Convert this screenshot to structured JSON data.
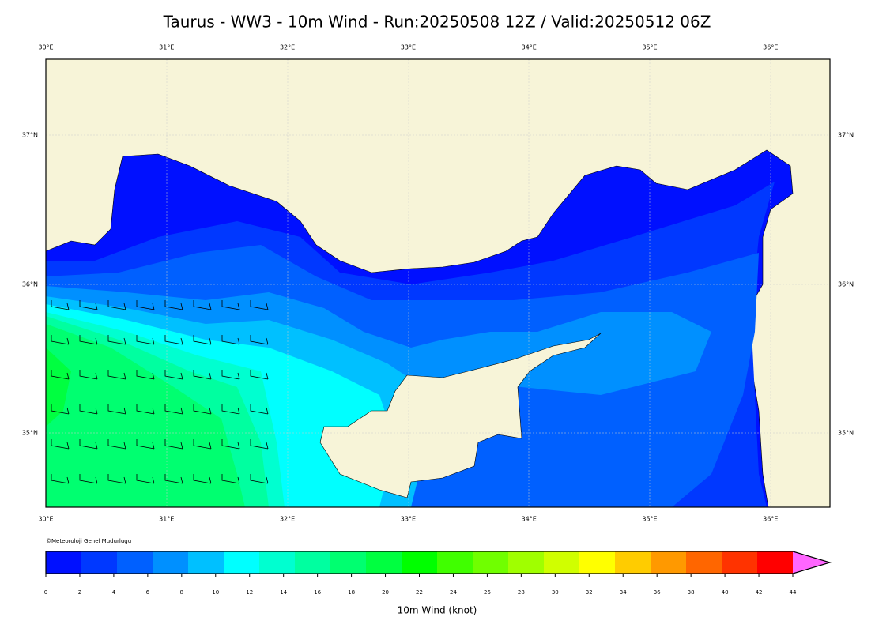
{
  "title": "Taurus - WW3 - 10m Wind - Run:20250508 12Z / Valid:20250512 06Z",
  "map": {
    "lon_labels": [
      "30°E",
      "31°E",
      "32°E",
      "33°E",
      "34°E",
      "35°E",
      "36°E"
    ],
    "lat_labels": [
      "37°N",
      "36°N",
      "35°N"
    ],
    "credit": "©Meteoroloji Genel Mudurlugu"
  },
  "colorbar": {
    "label": "10m Wind (knot)",
    "ticks": [
      0,
      2,
      4,
      6,
      8,
      10,
      12,
      14,
      16,
      18,
      20,
      22,
      24,
      26,
      28,
      30,
      32,
      34,
      36,
      38,
      40,
      42,
      44
    ],
    "colors": [
      "#0010ff",
      "#0038ff",
      "#0060ff",
      "#0090ff",
      "#00c0ff",
      "#00ffff",
      "#00ffd0",
      "#00ffa0",
      "#00ff70",
      "#00ff40",
      "#00ff00",
      "#40ff00",
      "#70ff00",
      "#a0ff00",
      "#d0ff00",
      "#ffff00",
      "#ffcc00",
      "#ff9900",
      "#ff6600",
      "#ff3300",
      "#ff0000",
      "#ff66ff"
    ]
  }
}
